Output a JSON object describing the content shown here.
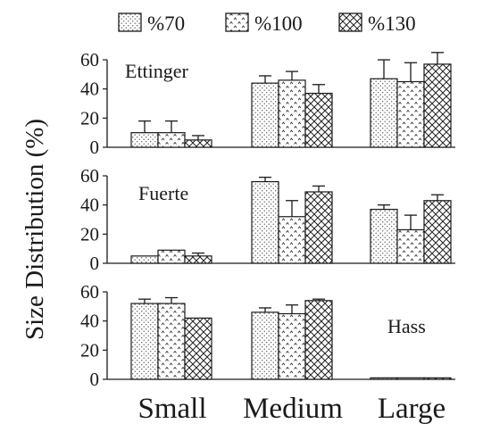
{
  "chart_data": {
    "type": "bar",
    "ylabel": "Size Distribution (%)",
    "xlabel": "",
    "categories": [
      "Small",
      "Medium",
      "Large"
    ],
    "ylim": [
      0,
      60
    ],
    "yticks": [
      0,
      20,
      40,
      60
    ],
    "legend": {
      "position": "top",
      "entries": [
        {
          "name": "%70",
          "pattern": "dots"
        },
        {
          "name": "%100",
          "pattern": "carets"
        },
        {
          "name": "%130",
          "pattern": "crosshatch"
        }
      ]
    },
    "panels": [
      {
        "label": "Ettinger",
        "label_position": "top-left",
        "series": [
          {
            "name": "%70",
            "values": [
              10,
              44,
              47
            ],
            "errors": [
              8,
              5,
              13
            ]
          },
          {
            "name": "%100",
            "values": [
              10,
              46,
              45
            ],
            "errors": [
              8,
              6,
              13
            ]
          },
          {
            "name": "%130",
            "values": [
              5,
              37,
              57
            ],
            "errors": [
              3,
              6,
              8
            ]
          }
        ]
      },
      {
        "label": "Fuerte",
        "label_position": "top-left",
        "series": [
          {
            "name": "%70",
            "values": [
              5,
              56,
              37
            ],
            "errors": [
              0,
              3,
              3
            ]
          },
          {
            "name": "%100",
            "values": [
              9,
              32,
              23
            ],
            "errors": [
              0,
              11,
              10
            ]
          },
          {
            "name": "%130",
            "values": [
              5,
              49,
              43
            ],
            "errors": [
              2,
              4,
              4
            ]
          }
        ]
      },
      {
        "label": "Hass",
        "label_position": "right",
        "series": [
          {
            "name": "%70",
            "values": [
              52,
              46,
              1
            ],
            "errors": [
              3,
              3,
              0
            ]
          },
          {
            "name": "%100",
            "values": [
              52,
              45,
              1
            ],
            "errors": [
              4,
              6,
              0
            ]
          },
          {
            "name": "%130",
            "values": [
              42,
              54,
              1
            ],
            "errors": [
              0,
              1,
              0
            ]
          }
        ]
      }
    ]
  }
}
